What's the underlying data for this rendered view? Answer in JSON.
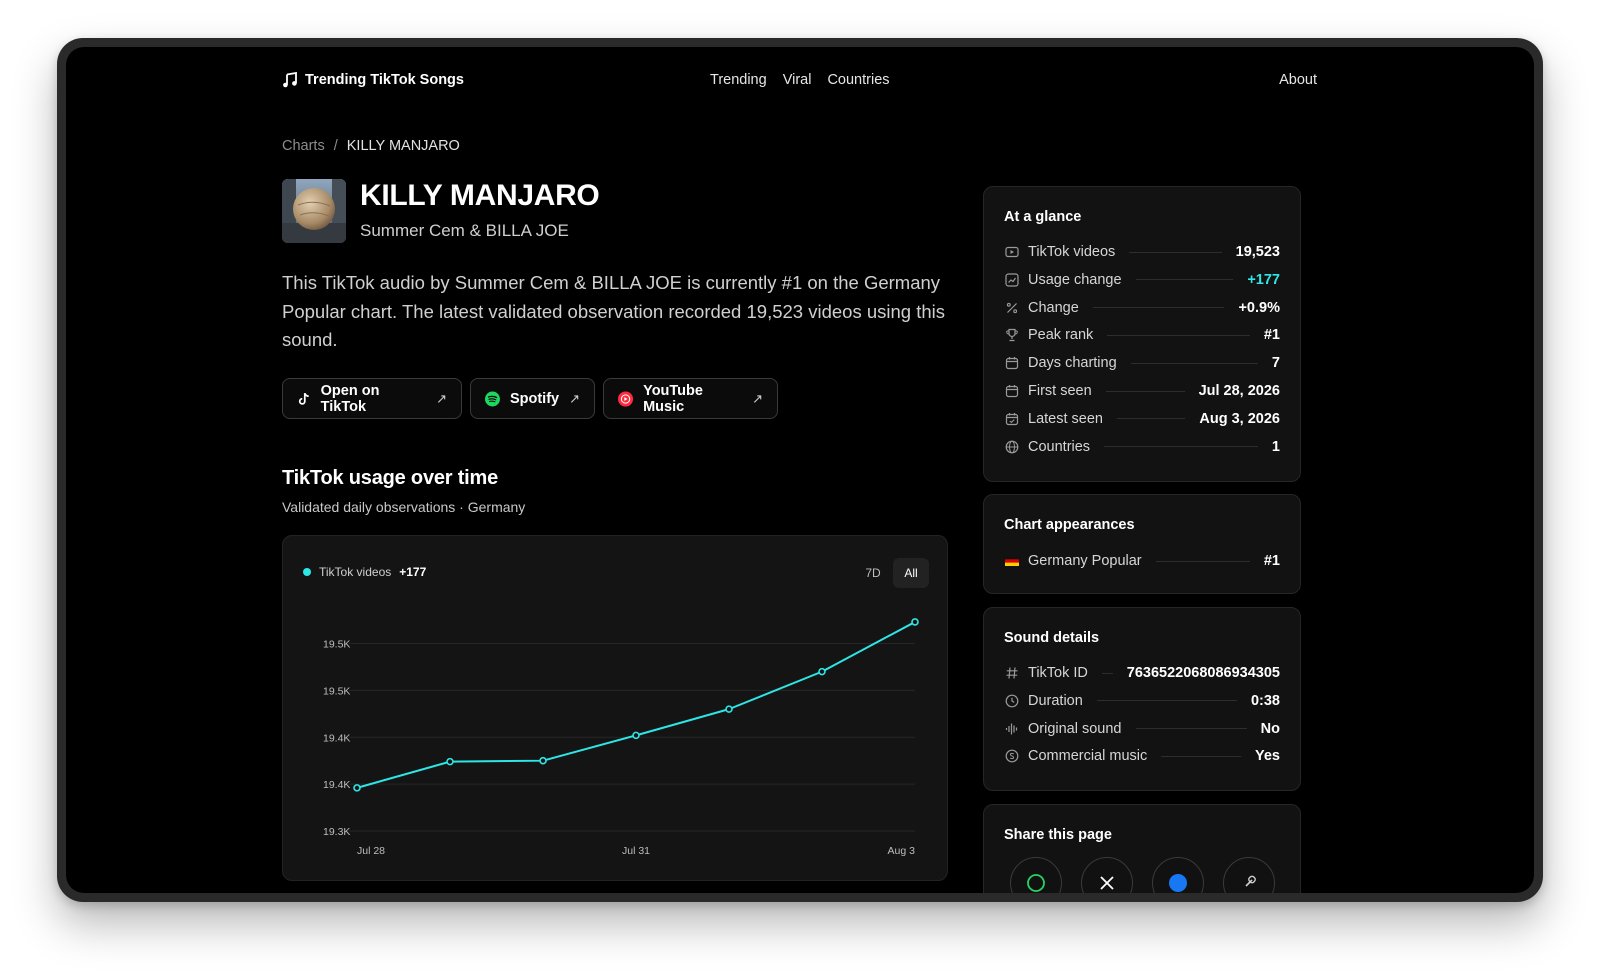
{
  "header": {
    "brand": "Trending TikTok Songs",
    "nav": [
      "Trending",
      "Viral",
      "Countries"
    ],
    "about": "About"
  },
  "breadcrumb": {
    "root": "Charts",
    "separator": "/",
    "current": "KILLY MANJARO"
  },
  "song": {
    "title": "KILLY MANJARO",
    "artist": "Summer Cem & BILLA JOE",
    "description": "This TikTok audio by Summer Cem & BILLA JOE is currently #1 on the Germany Popular chart. The latest validated observation recorded 19,523 videos using this sound."
  },
  "buttons": {
    "tiktok": "Open on TikTok",
    "spotify": "Spotify",
    "youtube": "YouTube Music",
    "arrow": "↗"
  },
  "usage": {
    "title": "TikTok usage over time",
    "subtitle": "Validated daily observations · Germany",
    "legend_label": "TikTok videos",
    "legend_value": "+177",
    "ranges": [
      "7D",
      "All"
    ],
    "active_range": "All",
    "accent": "#2ee6e6"
  },
  "chart_data": {
    "type": "line",
    "x": [
      "Jul 28",
      "Jul 29",
      "Jul 30",
      "Jul 31",
      "Aug 1",
      "Aug 2",
      "Aug 3"
    ],
    "series": [
      {
        "name": "TikTok videos",
        "values": [
          19346,
          19374,
          19375,
          19402,
          19430,
          19470,
          19523
        ]
      }
    ],
    "ylim": [
      19300,
      19540
    ],
    "y_ticks": [
      19300,
      19350,
      19400,
      19450,
      19500
    ],
    "y_tick_labels": [
      "19.3K",
      "19.4K",
      "19.4K",
      "19.5K",
      "19.5K"
    ],
    "x_tick_labels": [
      "Jul 28",
      "Jul 31",
      "Aug 3"
    ],
    "grid": true
  },
  "at_a_glance": {
    "title": "At a glance",
    "rows": [
      {
        "icon": "video-icon",
        "label": "TikTok videos",
        "value": "19,523"
      },
      {
        "icon": "trend-icon",
        "label": "Usage change",
        "value": "+177",
        "accent": true
      },
      {
        "icon": "percent-icon",
        "label": "Change",
        "value": "+0.9%"
      },
      {
        "icon": "trophy-icon",
        "label": "Peak rank",
        "value": "#1"
      },
      {
        "icon": "calendar-icon",
        "label": "Days charting",
        "value": "7"
      },
      {
        "icon": "calendar-icon",
        "label": "First seen",
        "value": "Jul 28, 2026"
      },
      {
        "icon": "calendar-check-icon",
        "label": "Latest seen",
        "value": "Aug 3, 2026"
      },
      {
        "icon": "globe-icon",
        "label": "Countries",
        "value": "1"
      }
    ]
  },
  "chart_appearances": {
    "title": "Chart appearances",
    "rows": [
      {
        "label": "Germany Popular",
        "value": "#1"
      }
    ]
  },
  "sound_details": {
    "title": "Sound details",
    "rows": [
      {
        "icon": "hash-icon",
        "label": "TikTok ID",
        "value": "7636522068086934305"
      },
      {
        "icon": "clock-icon",
        "label": "Duration",
        "value": "0:38"
      },
      {
        "icon": "waveform-icon",
        "label": "Original sound",
        "value": "No"
      },
      {
        "icon": "coin-icon",
        "label": "Commercial music",
        "value": "Yes"
      }
    ]
  },
  "share": {
    "title": "Share this page"
  }
}
